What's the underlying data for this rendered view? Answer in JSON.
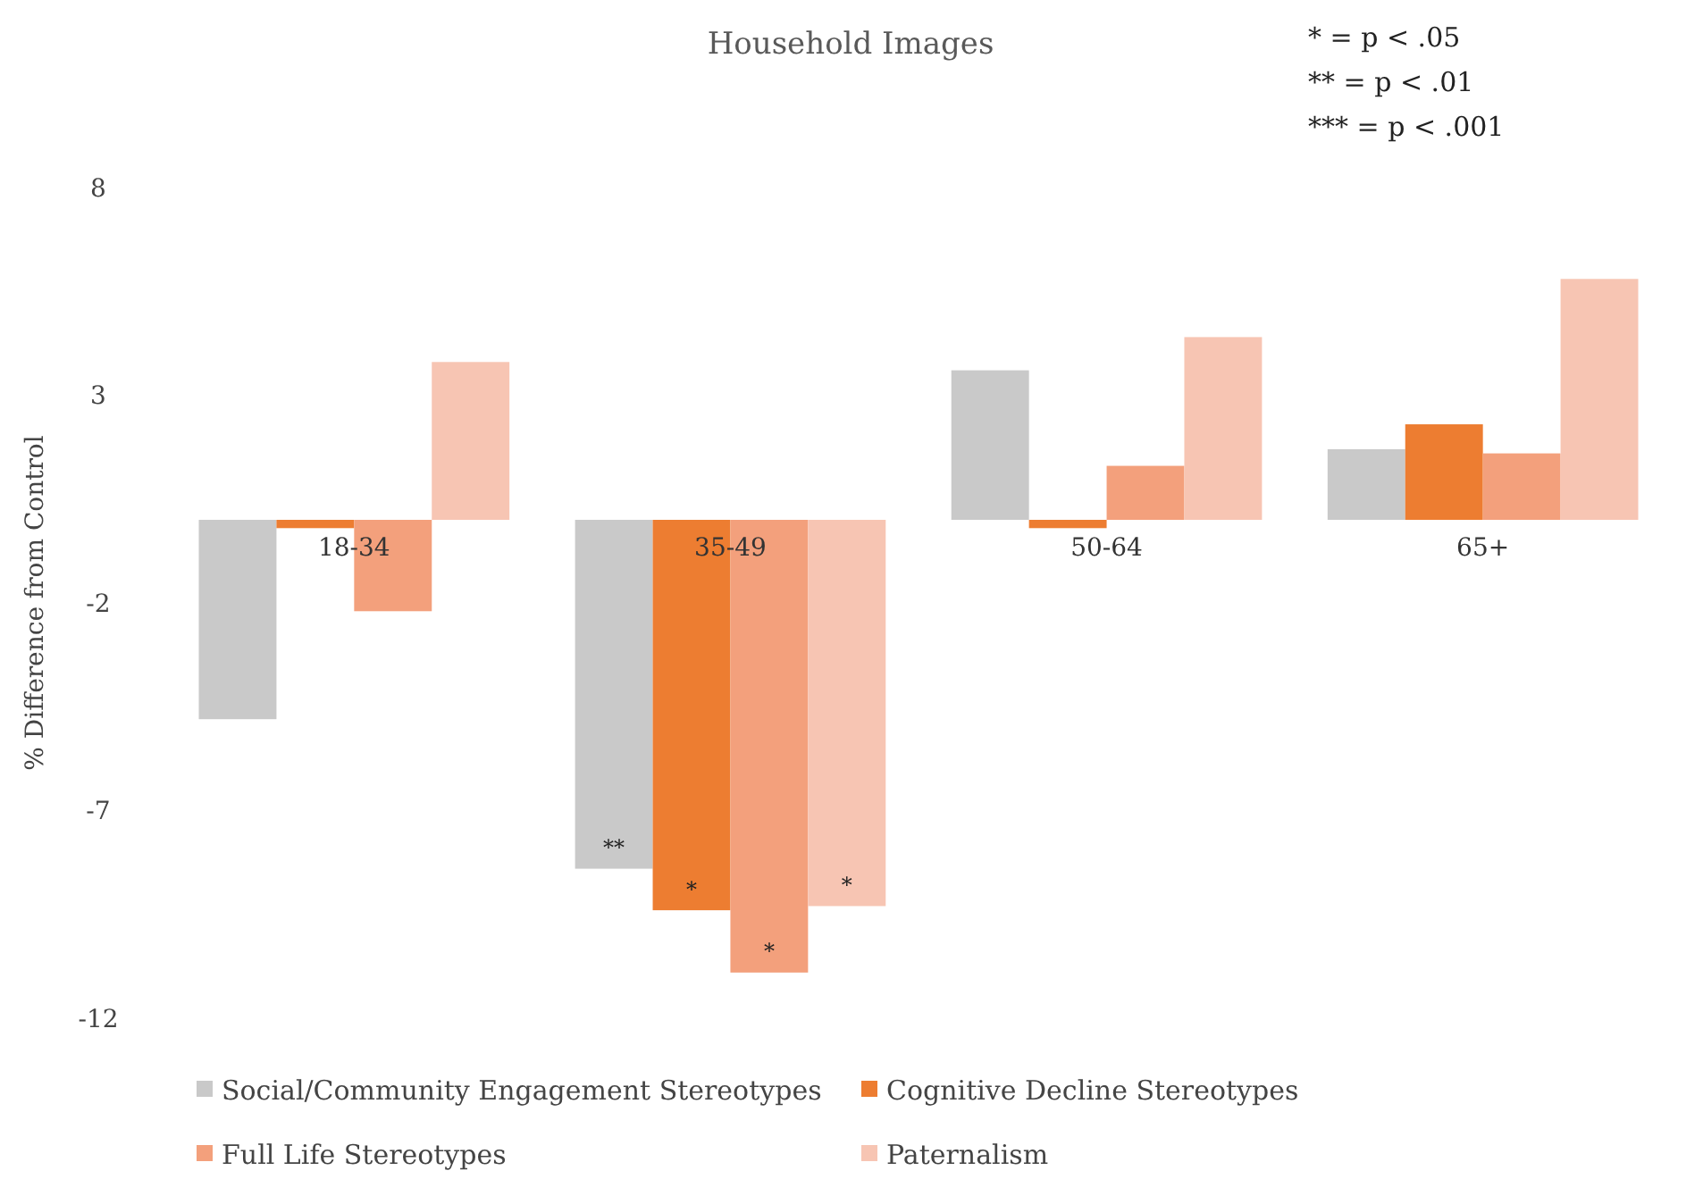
{
  "chart_data": {
    "type": "bar",
    "title": "Household Images",
    "ylabel": "% Difference from Control",
    "categories": [
      "18-34",
      "35-49",
      "50-64",
      "65+"
    ],
    "series": [
      {
        "name": "Social/Community Engagement Stereotypes",
        "color": "#c9c9c9",
        "values": [
          -4.8,
          -8.4,
          3.6,
          1.7
        ],
        "value_labels": [
          null,
          "**",
          null,
          null
        ]
      },
      {
        "name": "Cognitive Decline Stereotypes",
        "color": "#ed7d31",
        "values": [
          -0.2,
          -9.4,
          -0.2,
          2.3
        ],
        "value_labels": [
          null,
          "*",
          null,
          null
        ]
      },
      {
        "name": "Full Life Stereotypes",
        "color": "#f3a07c",
        "values": [
          -2.2,
          -10.9,
          1.3,
          1.6
        ],
        "value_labels": [
          null,
          "*",
          null,
          null
        ]
      },
      {
        "name": "Paternalism",
        "color": "#f7c5b3",
        "values": [
          3.8,
          -9.3,
          4.4,
          5.8
        ],
        "value_labels": [
          null,
          "*",
          null,
          null
        ]
      }
    ],
    "ylim": [
      -12,
      8
    ],
    "yticks": [
      -12,
      -7,
      -2,
      3,
      8
    ],
    "grid": false,
    "legend": "bottom",
    "annotations": [
      "* = p < .05",
      "** = p < .01",
      "*** = p < .001"
    ]
  }
}
